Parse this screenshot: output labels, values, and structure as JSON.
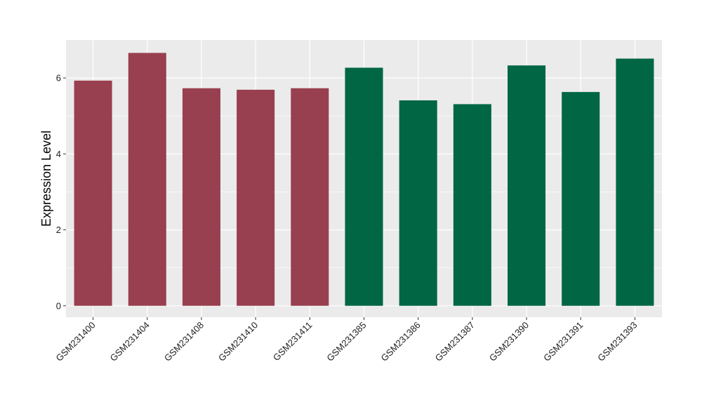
{
  "chart_data": {
    "type": "bar",
    "title": "",
    "xlabel": "",
    "ylabel": "Expression Level",
    "ylim": [
      -0.3,
      7.0
    ],
    "yticks": [
      0,
      2,
      4,
      6
    ],
    "grid": true,
    "legend": "none",
    "panel_background": "#ebebeb",
    "gridline_color": "#ffffff",
    "categories": [
      "GSM231400",
      "GSM231404",
      "GSM231408",
      "GSM231410",
      "GSM231411",
      "GSM231385",
      "GSM231386",
      "GSM231387",
      "GSM231390",
      "GSM231391",
      "GSM231393"
    ],
    "values": [
      5.93,
      6.66,
      5.73,
      5.69,
      5.73,
      6.27,
      5.41,
      5.31,
      6.33,
      5.63,
      6.51
    ],
    "bar_colors": [
      "#98404f",
      "#98404f",
      "#98404f",
      "#98404f",
      "#98404f",
      "#006644",
      "#006644",
      "#006644",
      "#006644",
      "#006644",
      "#006644"
    ]
  }
}
